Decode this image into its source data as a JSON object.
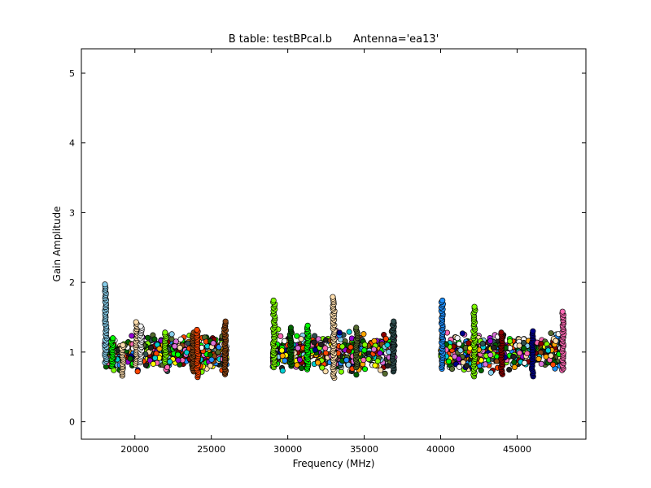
{
  "chart_data": {
    "type": "scatter",
    "title": "B table: testBPcal.b",
    "title_antenna": "Antenna='ea13'",
    "xlabel": "Frequency (MHz)",
    "ylabel": "Gain Amplitude",
    "xlim": [
      16500,
      49500
    ],
    "ylim": [
      -0.25,
      5.35
    ],
    "x_ticks": [
      20000,
      25000,
      30000,
      35000,
      40000,
      45000
    ],
    "y_ticks": [
      0,
      1,
      2,
      3,
      4,
      5
    ],
    "x_tick_labels": [
      "20000",
      "25000",
      "30000",
      "35000",
      "40000",
      "45000"
    ],
    "y_tick_labels": [
      "0",
      "1",
      "2",
      "3",
      "4",
      "5"
    ],
    "grid": false,
    "legend": "none",
    "marker": "circle",
    "marker_edge_color": "#000000",
    "palette": [
      "#87ceeb",
      "#00ff00",
      "#ffdead",
      "#ff69b4",
      "#1e90ff",
      "#ff4500",
      "#7fff00",
      "#da70d6",
      "#00008b",
      "#8b0000",
      "#006400",
      "#f5f5f5",
      "#2f4f4f",
      "#8b4513",
      "#ffa500",
      "#9400d3",
      "#00ced1",
      "#ffff00",
      "#222222",
      "#556b2f"
    ],
    "bands": [
      {
        "x_range": [
          18000,
          26000
        ],
        "y_center": 1.0,
        "y_spread": 0.2
      },
      {
        "x_range": [
          29000,
          37000
        ],
        "y_center": 1.0,
        "y_spread": 0.22
      },
      {
        "x_range": [
          40000,
          48000
        ],
        "y_center": 1.0,
        "y_spread": 0.2
      }
    ],
    "peaks": [
      {
        "x": 18100,
        "y_min": 0.85,
        "y_max": 1.97,
        "color": "#87ceeb"
      },
      {
        "x": 18500,
        "y_min": 0.8,
        "y_max": 1.2,
        "color": "#00ff00"
      },
      {
        "x": 19200,
        "y_min": 0.66,
        "y_max": 1.1,
        "color": "#ffdead"
      },
      {
        "x": 20100,
        "y_min": 0.82,
        "y_max": 1.43,
        "color": "#ffdead"
      },
      {
        "x": 20400,
        "y_min": 0.85,
        "y_max": 1.37,
        "color": "#f5f5f5"
      },
      {
        "x": 22000,
        "y_min": 0.85,
        "y_max": 1.28,
        "color": "#7fff00"
      },
      {
        "x": 23800,
        "y_min": 0.72,
        "y_max": 1.28,
        "color": "#8b4513"
      },
      {
        "x": 24100,
        "y_min": 0.64,
        "y_max": 1.32,
        "color": "#ff4500"
      },
      {
        "x": 25900,
        "y_min": 0.68,
        "y_max": 1.44,
        "color": "#8b4513"
      },
      {
        "x": 29100,
        "y_min": 0.78,
        "y_max": 1.74,
        "color": "#7fff00"
      },
      {
        "x": 30200,
        "y_min": 0.8,
        "y_max": 1.35,
        "color": "#006400"
      },
      {
        "x": 31300,
        "y_min": 0.75,
        "y_max": 1.38,
        "color": "#00ff00"
      },
      {
        "x": 33000,
        "y_min": 0.63,
        "y_max": 1.79,
        "color": "#ffdead"
      },
      {
        "x": 34500,
        "y_min": 0.78,
        "y_max": 1.35,
        "color": "#556b2f"
      },
      {
        "x": 36900,
        "y_min": 0.72,
        "y_max": 1.44,
        "color": "#2f4f4f"
      },
      {
        "x": 40100,
        "y_min": 0.76,
        "y_max": 1.74,
        "color": "#1e90ff"
      },
      {
        "x": 42200,
        "y_min": 0.65,
        "y_max": 1.65,
        "color": "#7fff00"
      },
      {
        "x": 44000,
        "y_min": 0.68,
        "y_max": 1.28,
        "color": "#8b0000"
      },
      {
        "x": 46000,
        "y_min": 0.65,
        "y_max": 1.3,
        "color": "#00008b"
      },
      {
        "x": 48000,
        "y_min": 0.74,
        "y_max": 1.58,
        "color": "#ff69b4"
      }
    ]
  }
}
